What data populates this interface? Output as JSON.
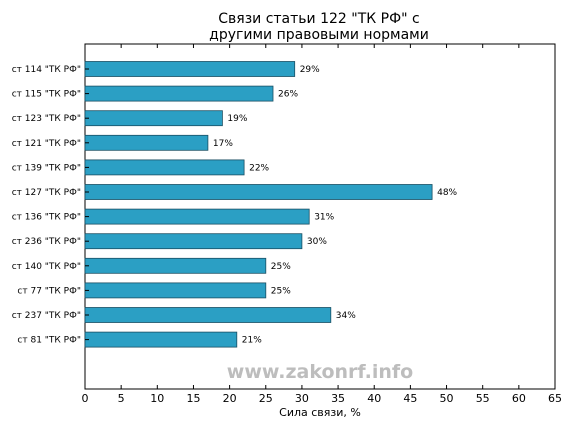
{
  "chart_data": {
    "type": "bar",
    "orientation": "horizontal",
    "title_lines": [
      "Связи статьи 122 \"ТК РФ\" с",
      "другими правовыми нормами"
    ],
    "categories": [
      "ст 114 \"ТК РФ\"",
      "ст 115 \"ТК РФ\"",
      "ст 123 \"ТК РФ\"",
      "ст 121 \"ТК РФ\"",
      "ст 139 \"ТК РФ\"",
      "ст 127 \"ТК РФ\"",
      "ст 136 \"ТК РФ\"",
      "ст 236 \"ТК РФ\"",
      "ст 140 \"ТК РФ\"",
      "ст 77 \"ТК РФ\"",
      "ст 237 \"ТК РФ\"",
      "ст 81 \"ТК РФ\""
    ],
    "values": [
      29,
      26,
      19,
      17,
      22,
      48,
      31,
      30,
      25,
      25,
      34,
      21
    ],
    "value_labels": [
      "29%",
      "26%",
      "19%",
      "17%",
      "22%",
      "48%",
      "31%",
      "30%",
      "25%",
      "25%",
      "34%",
      "21%"
    ],
    "xlabel": "Сила связи, %",
    "xlim": [
      0,
      65
    ],
    "xticks": [
      0,
      5,
      10,
      15,
      20,
      25,
      30,
      35,
      40,
      45,
      50,
      55,
      60,
      65
    ],
    "grid": false,
    "bar_color": "#2b9fc4",
    "bar_edge_color": "#1a4f63"
  },
  "watermark": "www.zakonrf.info"
}
